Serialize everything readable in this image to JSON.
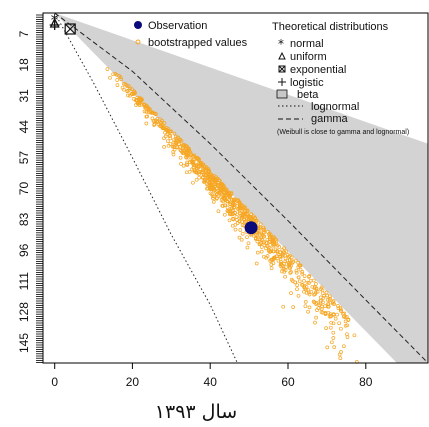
{
  "chart_data": {
    "type": "scatter",
    "title": "",
    "xlabel": "سال ۱۳۹۳",
    "ylabel": "",
    "xlim": [
      -3,
      96
    ],
    "ylim_display": [
      0,
      150
    ],
    "x_ticks": [
      "0",
      "20",
      "40",
      "60",
      "80"
    ],
    "y_ticks": [
      "7",
      "18",
      "31",
      "44",
      "57",
      "70",
      "83",
      "96",
      "111",
      "128",
      "145"
    ],
    "grid": false,
    "legend_left": {
      "position": "top-left",
      "entries": [
        {
          "label": "Observation",
          "symbol": "filled-circle",
          "color": "#0a0a7a"
        },
        {
          "label": "bootstrapped values",
          "symbol": "open-circle",
          "color": "#f5a623"
        }
      ]
    },
    "legend_right": {
      "position": "top-right",
      "title": "Theoretical distributions",
      "entries": [
        {
          "label": "normal",
          "symbol": "asterisk"
        },
        {
          "label": "uniform",
          "symbol": "triangle"
        },
        {
          "label": "exponential",
          "symbol": "boxed-x"
        },
        {
          "label": "logistic",
          "symbol": "plus"
        },
        {
          "label": "beta",
          "symbol": "grey-box"
        },
        {
          "label": "lognormal",
          "symbol": "dotted-line"
        },
        {
          "label": "gamma",
          "symbol": "dashed-line"
        }
      ],
      "note": "(Weibull is close to gamma and lognormal)"
    },
    "observation": {
      "x": 50.5,
      "y": 92
    },
    "theoretical_points": {
      "normal": {
        "x": 0,
        "y": 0
      },
      "uniform": {
        "x": 0,
        "y": 0
      },
      "logistic": {
        "x": 0,
        "y": 0
      },
      "exponential": {
        "x": 4,
        "y": 6
      }
    },
    "beta_region": [
      [
        0,
        0
      ],
      [
        96,
        56
      ],
      [
        96,
        150
      ],
      [
        88,
        150
      ],
      [
        0,
        0
      ]
    ],
    "gamma_curve": [
      [
        0,
        0
      ],
      [
        20,
        25
      ],
      [
        40,
        56
      ],
      [
        60,
        89
      ],
      [
        80,
        123
      ],
      [
        96,
        150
      ]
    ],
    "lognormal_curve": [
      [
        0,
        0
      ],
      [
        10,
        30
      ],
      [
        20,
        62
      ],
      [
        30,
        95
      ],
      [
        40,
        125
      ],
      [
        47,
        150
      ]
    ],
    "bootstrap": {
      "count": 900,
      "t_range": [
        0.35,
        1.72
      ],
      "x_scale": 44,
      "y_over_x": 1.74,
      "spread": 0.08,
      "color": "#f5a623"
    }
  }
}
